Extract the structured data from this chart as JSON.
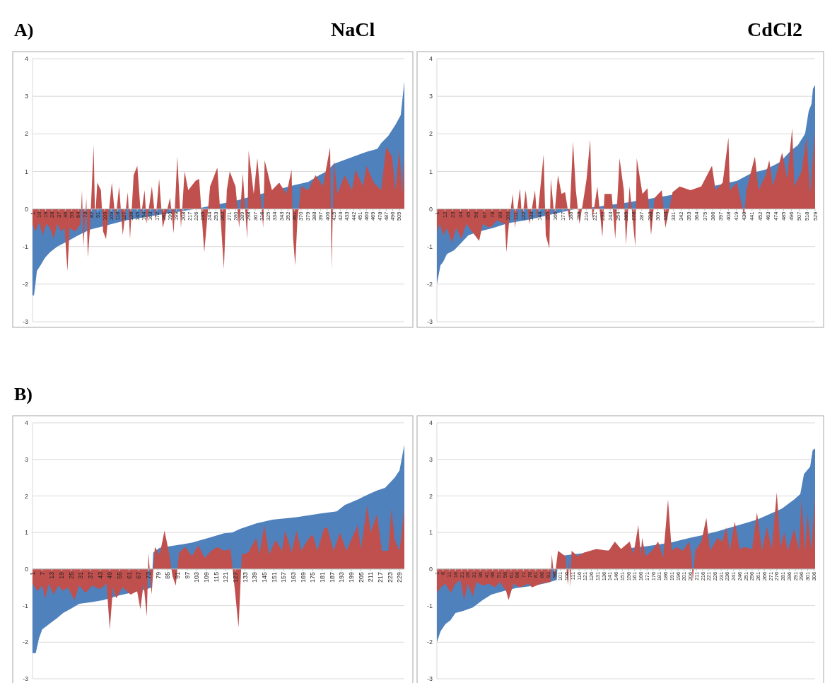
{
  "chart_data": [
    {
      "type": "area",
      "title": "NaCl",
      "annotations": [
        "A)"
      ],
      "xlim": [
        1,
        512
      ],
      "ylim": [
        -3,
        4
      ],
      "yticks": [
        -3,
        -2,
        -1,
        0,
        1,
        2,
        3,
        4
      ],
      "grid": "y",
      "xticks": [
        1,
        10,
        19,
        28,
        37,
        46,
        55,
        64,
        73,
        82,
        91,
        100,
        109,
        118,
        127,
        136,
        145,
        154,
        163,
        172,
        181,
        190,
        199,
        208,
        217,
        226,
        235,
        244,
        253,
        262,
        271,
        280,
        289,
        298,
        307,
        316,
        325,
        334,
        343,
        352,
        361,
        370,
        379,
        388,
        397,
        406,
        415,
        424,
        433,
        442,
        451,
        460,
        469,
        478,
        487,
        496,
        505
      ],
      "series": [
        {
          "color": "#4f81bd",
          "x": [
            1,
            3,
            5,
            7,
            12,
            18,
            25,
            35,
            50,
            64,
            80,
            100,
            130,
            160,
            200,
            225,
            280,
            360,
            380,
            395,
            405,
            415,
            440,
            460,
            475,
            480,
            490,
            500,
            507,
            512
          ],
          "values": [
            -2.3,
            -2.3,
            -2.0,
            -1.65,
            -1.5,
            -1.3,
            -1.15,
            -1.0,
            -0.85,
            -0.7,
            -0.55,
            -0.45,
            -0.3,
            -0.2,
            -0.08,
            0,
            0.22,
            0.63,
            0.72,
            0.9,
            1.0,
            1.2,
            1.38,
            1.52,
            1.6,
            1.75,
            1.95,
            2.25,
            2.5,
            3.4
          ]
        },
        {
          "color": "#c0504d",
          "x": [
            1,
            5,
            10,
            15,
            20,
            25,
            30,
            35,
            40,
            45,
            49,
            52,
            60,
            67,
            69,
            71,
            75,
            77,
            80,
            85,
            87,
            90,
            95,
            98,
            102,
            110,
            115,
            120,
            125,
            132,
            135,
            140,
            145,
            150,
            155,
            158,
            165,
            170,
            175,
            180,
            190,
            195,
            200,
            205,
            210,
            215,
            225,
            230,
            237,
            245,
            255,
            264,
            268,
            272,
            280,
            285,
            290,
            296,
            298,
            305,
            310,
            318,
            320,
            330,
            340,
            350,
            357,
            359,
            362,
            365,
            370,
            380,
            390,
            400,
            410,
            412,
            415,
            420,
            430,
            440,
            445,
            455,
            460,
            470,
            480,
            487,
            495,
            500,
            505,
            509,
            512
          ],
          "values": [
            -0.4,
            -0.6,
            -0.35,
            -0.7,
            -0.4,
            -0.5,
            -0.8,
            -0.4,
            -0.6,
            -0.5,
            -1.65,
            -0.5,
            -0.6,
            -0.4,
            0.5,
            -1.0,
            0.3,
            -1.3,
            -0.5,
            1.7,
            -0.3,
            0.7,
            0.5,
            -0.6,
            -0.8,
            0.7,
            -0.3,
            0.6,
            -0.7,
            0.45,
            -0.8,
            0.9,
            1.15,
            -0.2,
            0.5,
            -0.4,
            0.6,
            -0.3,
            0.8,
            -0.5,
            0.3,
            -0.65,
            1.4,
            -0.5,
            1.0,
            0.5,
            0.75,
            0.8,
            -1.15,
            0.6,
            1.1,
            -1.6,
            0.5,
            1.0,
            0.6,
            -0.5,
            0.95,
            -0.8,
            1.55,
            0.4,
            1.35,
            -0.5,
            1.3,
            0.5,
            0.7,
            0.4,
            1.05,
            -0.75,
            -1.5,
            -0.3,
            0.6,
            0.5,
            0.9,
            0.6,
            1.65,
            -1.6,
            1.3,
            0.4,
            0.9,
            0.5,
            1.05,
            0.6,
            1.15,
            0.7,
            0.5,
            1.65,
            1.4,
            0.5,
            1.6,
            0.4,
            1.5
          ]
        }
      ]
    },
    {
      "type": "area",
      "title": "CdCl2",
      "xlim": [
        1,
        529
      ],
      "ylim": [
        -3,
        4
      ],
      "yticks": [
        -3,
        -2,
        -1,
        0,
        1,
        2,
        3,
        4
      ],
      "grid": "y",
      "xticks": [
        1,
        12,
        23,
        34,
        45,
        56,
        67,
        78,
        89,
        100,
        111,
        122,
        133,
        144,
        155,
        166,
        177,
        188,
        199,
        210,
        221,
        232,
        243,
        254,
        265,
        276,
        287,
        298,
        309,
        320,
        331,
        342,
        353,
        364,
        375,
        386,
        397,
        408,
        419,
        430,
        441,
        452,
        463,
        474,
        485,
        496,
        507,
        518,
        529
      ],
      "series": [
        {
          "color": "#4f81bd",
          "x": [
            1,
            3,
            6,
            10,
            15,
            25,
            35,
            45,
            60,
            80,
            100,
            130,
            160,
            195,
            220,
            260,
            300,
            330,
            360,
            390,
            420,
            440,
            460,
            480,
            495,
            505,
            515,
            520,
            524,
            526,
            529
          ],
          "values": [
            -2.0,
            -1.8,
            -1.5,
            -1.4,
            -1.2,
            -1.1,
            -0.9,
            -0.7,
            -0.6,
            -0.5,
            -0.38,
            -0.28,
            -0.15,
            0,
            0.05,
            0.15,
            0.28,
            0.38,
            0.5,
            0.62,
            0.75,
            0.95,
            1.05,
            1.25,
            1.55,
            1.7,
            2.0,
            2.6,
            2.8,
            3.2,
            3.3
          ]
        },
        {
          "color": "#c0504d",
          "x": [
            1,
            5,
            10,
            15,
            22,
            28,
            35,
            42,
            50,
            60,
            65,
            75,
            85,
            96,
            98,
            102,
            107,
            110,
            117,
            120,
            125,
            130,
            138,
            141,
            150,
            153,
            158,
            160,
            165,
            170,
            175,
            180,
            186,
            191,
            195,
            200,
            206,
            210,
            215,
            218,
            225,
            232,
            235,
            245,
            250,
            256,
            262,
            265,
            270,
            278,
            280,
            288,
            295,
            300,
            305,
            315,
            320,
            330,
            340,
            355,
            370,
            385,
            390,
            400,
            408,
            410,
            420,
            430,
            433,
            445,
            450,
            460,
            465,
            470,
            483,
            490,
            497,
            500,
            510,
            517,
            522,
            529
          ],
          "values": [
            -0.6,
            -0.4,
            -0.7,
            -0.5,
            -0.9,
            -0.5,
            -0.8,
            -0.4,
            -0.6,
            -0.85,
            -0.4,
            -0.5,
            -0.3,
            -0.4,
            -1.15,
            -0.3,
            0.4,
            -0.5,
            0.55,
            -0.3,
            0.5,
            -0.4,
            0.5,
            -0.3,
            1.45,
            -0.7,
            -1.05,
            0.8,
            -0.2,
            0.9,
            0.4,
            0.45,
            -0.3,
            1.8,
            0.5,
            -0.4,
            0.3,
            0.8,
            1.85,
            -0.3,
            0.6,
            -0.75,
            0.4,
            0.4,
            -0.8,
            1.35,
            0.5,
            -0.95,
            0.6,
            -1.0,
            1.35,
            0.4,
            0.55,
            -0.7,
            0.3,
            0.5,
            -0.5,
            0.45,
            0.6,
            0.5,
            0.6,
            1.15,
            0.5,
            0.7,
            1.9,
            0.5,
            0.7,
            -0.2,
            0.5,
            1.4,
            0.5,
            0.9,
            1.3,
            0.6,
            1.5,
            0.8,
            2.15,
            0.6,
            1.0,
            1.9,
            0.4,
            2.05
          ]
        }
      ]
    },
    {
      "type": "area",
      "annotations": [
        "B)"
      ],
      "xlim": [
        1,
        232
      ],
      "ylim": [
        -3,
        4
      ],
      "yticks": [
        -3,
        -2,
        -1,
        0,
        1,
        2,
        3,
        4
      ],
      "grid": "y",
      "xticks": [
        1,
        7,
        13,
        19,
        25,
        31,
        37,
        43,
        49,
        55,
        61,
        67,
        73,
        79,
        85,
        91,
        97,
        103,
        109,
        115,
        121,
        127,
        133,
        139,
        145,
        151,
        157,
        163,
        169,
        175,
        181,
        187,
        193,
        199,
        205,
        211,
        217,
        223,
        229
      ],
      "series": [
        {
          "color": "#4f81bd",
          "x": [
            1,
            3,
            5,
            7,
            10,
            13,
            16,
            20,
            25,
            30,
            38,
            45,
            55,
            65,
            72,
            75,
            76,
            80,
            90,
            100,
            110,
            120,
            125,
            130,
            140,
            150,
            165,
            180,
            190,
            195,
            203,
            210,
            215,
            220,
            226,
            229,
            232
          ],
          "values": [
            -2.3,
            -2.3,
            -1.9,
            -1.65,
            -1.55,
            -1.45,
            -1.35,
            -1.2,
            -1.08,
            -0.95,
            -0.9,
            -0.85,
            -0.72,
            -0.62,
            -0.55,
            -0.5,
            0.45,
            0.58,
            0.65,
            0.72,
            0.85,
            0.98,
            1.0,
            1.1,
            1.25,
            1.35,
            1.42,
            1.52,
            1.58,
            1.75,
            1.9,
            2.05,
            2.15,
            2.22,
            2.5,
            2.7,
            3.4
          ]
        },
        {
          "color": "#c0504d",
          "x": [
            1,
            4,
            7,
            9,
            11,
            14,
            17,
            20,
            23,
            27,
            30,
            34,
            38,
            43,
            47,
            49,
            51,
            53,
            57,
            62,
            66,
            68,
            70,
            72,
            73,
            75,
            77,
            80,
            83,
            86,
            88,
            90,
            92,
            96,
            100,
            104,
            108,
            112,
            116,
            120,
            124,
            127,
            129,
            131,
            135,
            140,
            142,
            145,
            148,
            152,
            156,
            158,
            162,
            165,
            168,
            172,
            175,
            178,
            182,
            184,
            188,
            192,
            196,
            200,
            203,
            205,
            209,
            211,
            215,
            218,
            222,
            224,
            226,
            229,
            232
          ],
          "values": [
            -0.4,
            -0.6,
            -0.45,
            -0.8,
            -0.4,
            -0.7,
            -0.45,
            -0.6,
            -0.5,
            -0.85,
            -0.45,
            -0.65,
            -0.45,
            -0.55,
            -0.4,
            -1.65,
            -0.5,
            -0.8,
            -0.5,
            -0.7,
            -0.6,
            -1.1,
            -0.4,
            -1.3,
            0.45,
            -0.7,
            0.6,
            0.4,
            1.05,
            0.4,
            -0.2,
            -0.45,
            0.45,
            0.6,
            0.35,
            0.65,
            0.3,
            0.5,
            0.6,
            0.5,
            0.55,
            -0.7,
            -1.6,
            0.4,
            0.45,
            0.85,
            0.4,
            1.2,
            0.4,
            0.8,
            0.5,
            1.05,
            0.45,
            1.05,
            0.5,
            0.8,
            0.95,
            0.5,
            1.1,
            1.15,
            0.5,
            1.0,
            0.5,
            0.9,
            1.2,
            0.55,
            1.75,
            1.0,
            1.5,
            0.5,
            0.5,
            1.65,
            0.8,
            0.5,
            1.65
          ]
        }
      ]
    },
    {
      "type": "area",
      "xlim": [
        1,
        307
      ],
      "ylim": [
        -3,
        4
      ],
      "yticks": [
        -3,
        -2,
        -1,
        0,
        1,
        2,
        3,
        4
      ],
      "grid": "y",
      "xticks": [
        1,
        6,
        11,
        16,
        21,
        26,
        31,
        36,
        41,
        46,
        51,
        56,
        61,
        66,
        71,
        76,
        81,
        86,
        91,
        96,
        101,
        106,
        111,
        116,
        121,
        126,
        131,
        136,
        141,
        146,
        151,
        156,
        161,
        166,
        171,
        176,
        181,
        186,
        191,
        196,
        201,
        206,
        211,
        216,
        221,
        226,
        231,
        236,
        241,
        246,
        251,
        256,
        261,
        266,
        271,
        276,
        281,
        286,
        291,
        296,
        301,
        306
      ],
      "series": [
        {
          "color": "#4f81bd",
          "x": [
            1,
            4,
            8,
            12,
            16,
            22,
            30,
            38,
            45,
            55,
            65,
            80,
            90,
            98,
            99,
            110,
            150,
            170,
            190,
            205,
            215,
            230,
            245,
            260,
            270,
            280,
            290,
            295,
            298,
            303,
            305,
            307
          ],
          "values": [
            -2.0,
            -1.7,
            -1.5,
            -1.4,
            -1.2,
            -1.15,
            -1.05,
            -0.85,
            -0.7,
            -0.6,
            -0.52,
            -0.45,
            -0.38,
            -0.3,
            0.35,
            0.4,
            0.55,
            0.62,
            0.72,
            0.85,
            0.92,
            1.05,
            1.2,
            1.35,
            1.5,
            1.65,
            1.9,
            2.05,
            2.6,
            2.8,
            3.25,
            3.3
          ]
        },
        {
          "color": "#c0504d",
          "x": [
            1,
            4,
            8,
            12,
            16,
            20,
            23,
            26,
            30,
            33,
            38,
            43,
            48,
            52,
            57,
            59,
            63,
            68,
            75,
            78,
            85,
            93,
            94,
            96,
            99,
            105,
            107,
            108,
            109,
            110,
            115,
            120,
            130,
            140,
            145,
            150,
            157,
            160,
            164,
            166,
            167,
            170,
            175,
            180,
            184,
            188,
            191,
            195,
            200,
            205,
            207,
            208,
            210,
            215,
            219,
            222,
            228,
            232,
            235,
            238,
            242,
            246,
            250,
            256,
            260,
            264,
            268,
            272,
            276,
            279,
            282,
            285,
            290,
            294,
            296,
            299,
            301,
            304,
            307
          ],
          "values": [
            -0.65,
            -0.5,
            -0.4,
            -0.65,
            -0.4,
            -0.3,
            -0.85,
            -0.4,
            -0.75,
            -0.35,
            -0.45,
            -0.4,
            -0.5,
            -0.35,
            -0.6,
            -0.85,
            -0.4,
            -0.5,
            -0.4,
            -0.5,
            -0.4,
            -0.35,
            0.4,
            -0.3,
            0.5,
            0.35,
            -0.45,
            0.3,
            -0.5,
            0.5,
            0.35,
            0.45,
            0.55,
            0.5,
            0.75,
            0.55,
            0.75,
            0.4,
            1.2,
            0.35,
            0.85,
            0.35,
            0.5,
            0.75,
            0.3,
            1.9,
            0.5,
            0.6,
            0.5,
            0.75,
            0.35,
            -0.35,
            0.5,
            0.75,
            1.4,
            0.5,
            0.85,
            0.75,
            1.15,
            0.5,
            1.3,
            0.55,
            0.6,
            0.55,
            1.55,
            0.5,
            1.15,
            0.55,
            2.1,
            0.6,
            1.0,
            0.5,
            1.1,
            0.5,
            1.9,
            0.5,
            1.5,
            0.5,
            1.95
          ]
        }
      ]
    }
  ]
}
